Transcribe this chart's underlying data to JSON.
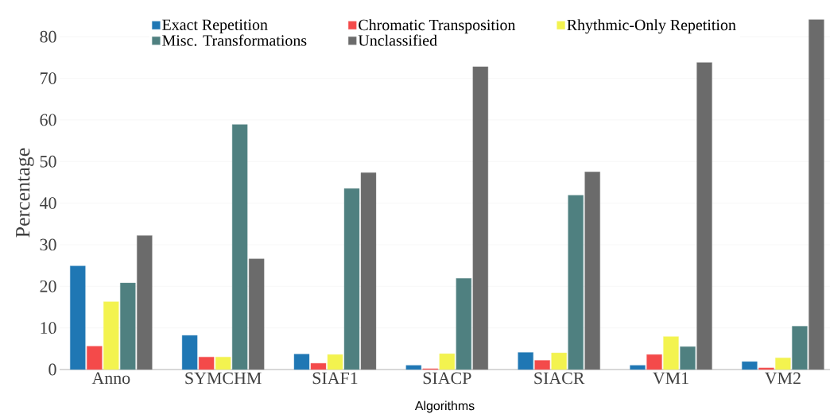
{
  "chart_data": {
    "type": "bar",
    "xlabel": "Algorithms",
    "ylabel": "Percentage",
    "categories": [
      "Anno",
      "SYMCHM",
      "SIAF1",
      "SIACP",
      "SIACR",
      "VM1",
      "VM2"
    ],
    "series": [
      {
        "name": "Exact Repetition",
        "color": "#1f77b4",
        "values": [
          24.9,
          8.2,
          3.7,
          1.0,
          4.1,
          1.0,
          1.9
        ]
      },
      {
        "name": "Chromatic Transposition",
        "color": "#f44a4a",
        "values": [
          5.6,
          3.0,
          1.5,
          0.2,
          2.2,
          3.6,
          0.4
        ]
      },
      {
        "name": "Rhythmic-Only Repetition",
        "color": "#f3f34f",
        "values": [
          16.3,
          3.0,
          3.6,
          3.8,
          4.0,
          7.9,
          2.8
        ]
      },
      {
        "name": "Misc. Transformations",
        "color": "#4f8080",
        "values": [
          20.8,
          58.9,
          43.5,
          21.9,
          41.9,
          5.5,
          10.4
        ]
      },
      {
        "name": "Unclassified",
        "color": "#6b6b6b",
        "values": [
          32.2,
          26.6,
          47.3,
          72.8,
          47.5,
          73.8,
          84.1
        ]
      }
    ],
    "ylim": [
      0,
      85
    ],
    "yticks": [
      0,
      10,
      20,
      30,
      40,
      50,
      60,
      70,
      80
    ],
    "grid": "y",
    "legend": "top"
  }
}
